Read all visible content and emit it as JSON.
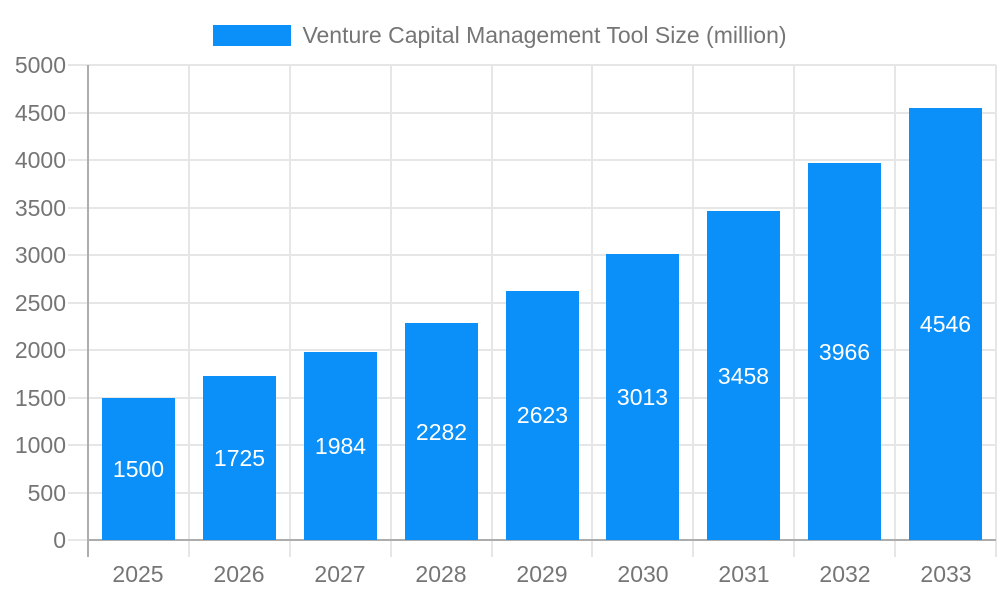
{
  "chart_data": {
    "type": "bar",
    "title": "Venture Capital Management Tool Size (million)",
    "categories": [
      "2025",
      "2026",
      "2027",
      "2028",
      "2029",
      "2030",
      "2031",
      "2032",
      "2033"
    ],
    "values": [
      1500,
      1725,
      1984,
      2282,
      2623,
      3013,
      3458,
      3966,
      4546
    ],
    "xlabel": "",
    "ylabel": "",
    "ylim": [
      0,
      5000
    ],
    "ytick_step": 500,
    "grid": true,
    "legend_position": "top-center",
    "bar_label_style": "inside-center"
  },
  "legend": {
    "swatch_icon": "legend-color-swatch"
  },
  "colors": {
    "bar": "#0A90F8",
    "grid": "#E6E6E6",
    "axis": "#ADADAD",
    "text": "#757575",
    "bar_label": "#FFFFFF",
    "background": "#FFFFFF"
  }
}
